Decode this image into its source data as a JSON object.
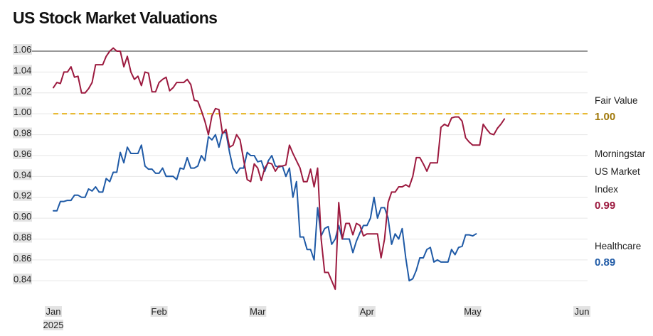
{
  "title": "US Stock Market Valuations",
  "colors": {
    "morningstar": "#9c1a3f",
    "healthcare": "#1f5aa6",
    "fair_value": "#e6b422",
    "fair_value_text": "#a0780a",
    "tick_highlight": "#e3e3e3",
    "grid": "#e6e6e6",
    "top_line": "#333333"
  },
  "labels": {
    "fair_value": {
      "name": "Fair Value",
      "value": "1.00"
    },
    "morningstar": {
      "name_lines": [
        "Morningstar",
        "US Market",
        "Index"
      ],
      "value": "0.99"
    },
    "healthcare": {
      "name": "Healthcare",
      "value": "0.89"
    }
  },
  "chart_data": {
    "type": "line",
    "title": "US Stock Market Valuations",
    "xlabel": "",
    "ylabel": "",
    "ylim": [
      0.83,
      1.06
    ],
    "xlim": [
      "2025-01-02",
      "2025-06-02"
    ],
    "yticks": [
      "1.06",
      "1.04",
      "1.02",
      "1.00",
      "0.98",
      "0.96",
      "0.94",
      "0.92",
      "0.90",
      "0.88",
      "0.86",
      "0.84"
    ],
    "xticks": [
      {
        "date": "2025-01-02",
        "label": "Jan",
        "sublabel": "2025"
      },
      {
        "date": "2025-02-01",
        "label": "Feb"
      },
      {
        "date": "2025-03-01",
        "label": "Mar"
      },
      {
        "date": "2025-04-01",
        "label": "Apr"
      },
      {
        "date": "2025-05-01",
        "label": "May"
      },
      {
        "date": "2025-06-01",
        "label": "Jun"
      }
    ],
    "grid": true,
    "reference_line": {
      "name": "Fair Value",
      "y": 1.0
    },
    "series": [
      {
        "name": "Morningstar US Market Index",
        "points": [
          [
            "2025-01-02",
            1.025
          ],
          [
            "2025-01-03",
            1.03
          ],
          [
            "2025-01-04",
            1.029
          ],
          [
            "2025-01-05",
            1.04
          ],
          [
            "2025-01-06",
            1.04
          ],
          [
            "2025-01-07",
            1.045
          ],
          [
            "2025-01-08",
            1.035
          ],
          [
            "2025-01-09",
            1.036
          ],
          [
            "2025-01-10",
            1.02
          ],
          [
            "2025-01-11",
            1.02
          ],
          [
            "2025-01-12",
            1.024
          ],
          [
            "2025-01-13",
            1.03
          ],
          [
            "2025-01-14",
            1.047
          ],
          [
            "2025-01-15",
            1.047
          ],
          [
            "2025-01-16",
            1.047
          ],
          [
            "2025-01-17",
            1.055
          ],
          [
            "2025-01-18",
            1.06
          ],
          [
            "2025-01-19",
            1.063
          ],
          [
            "2025-01-20",
            1.06
          ],
          [
            "2025-01-21",
            1.06
          ],
          [
            "2025-01-22",
            1.045
          ],
          [
            "2025-01-23",
            1.055
          ],
          [
            "2025-01-24",
            1.04
          ],
          [
            "2025-01-25",
            1.033
          ],
          [
            "2025-01-26",
            1.036
          ],
          [
            "2025-01-27",
            1.027
          ],
          [
            "2025-01-28",
            1.04
          ],
          [
            "2025-01-29",
            1.039
          ],
          [
            "2025-01-30",
            1.021
          ],
          [
            "2025-01-31",
            1.021
          ],
          [
            "2025-02-01",
            1.03
          ],
          [
            "2025-02-02",
            1.033
          ],
          [
            "2025-02-03",
            1.035
          ],
          [
            "2025-02-04",
            1.022
          ],
          [
            "2025-02-05",
            1.025
          ],
          [
            "2025-02-06",
            1.03
          ],
          [
            "2025-02-07",
            1.03
          ],
          [
            "2025-02-08",
            1.03
          ],
          [
            "2025-02-09",
            1.033
          ],
          [
            "2025-02-10",
            1.028
          ],
          [
            "2025-02-11",
            1.013
          ],
          [
            "2025-02-12",
            1.012
          ],
          [
            "2025-02-13",
            1.003
          ],
          [
            "2025-02-14",
            0.993
          ],
          [
            "2025-02-15",
            0.98
          ],
          [
            "2025-02-16",
            0.998
          ],
          [
            "2025-02-17",
            1.005
          ],
          [
            "2025-02-18",
            1.004
          ],
          [
            "2025-02-19",
            0.981
          ],
          [
            "2025-02-20",
            0.985
          ],
          [
            "2025-02-21",
            0.968
          ],
          [
            "2025-02-22",
            0.97
          ],
          [
            "2025-02-23",
            0.98
          ],
          [
            "2025-02-24",
            0.975
          ],
          [
            "2025-02-25",
            0.956
          ],
          [
            "2025-02-26",
            0.937
          ],
          [
            "2025-02-27",
            0.935
          ],
          [
            "2025-02-28",
            0.952
          ],
          [
            "2025-03-01",
            0.948
          ],
          [
            "2025-03-02",
            0.936
          ],
          [
            "2025-03-03",
            0.948
          ],
          [
            "2025-03-04",
            0.953
          ],
          [
            "2025-03-05",
            0.952
          ],
          [
            "2025-03-06",
            0.945
          ],
          [
            "2025-03-07",
            0.95
          ],
          [
            "2025-03-08",
            0.95
          ],
          [
            "2025-03-09",
            0.951
          ],
          [
            "2025-03-10",
            0.97
          ],
          [
            "2025-03-11",
            0.962
          ],
          [
            "2025-03-12",
            0.955
          ],
          [
            "2025-03-13",
            0.948
          ],
          [
            "2025-03-14",
            0.935
          ],
          [
            "2025-03-15",
            0.935
          ],
          [
            "2025-03-16",
            0.947
          ],
          [
            "2025-03-17",
            0.93
          ],
          [
            "2025-03-18",
            0.948
          ],
          [
            "2025-03-19",
            0.88
          ],
          [
            "2025-03-20",
            0.848
          ],
          [
            "2025-03-21",
            0.848
          ],
          [
            "2025-03-22",
            0.84
          ],
          [
            "2025-03-23",
            0.832
          ],
          [
            "2025-03-24",
            0.915
          ],
          [
            "2025-03-25",
            0.88
          ],
          [
            "2025-03-26",
            0.895
          ],
          [
            "2025-03-27",
            0.895
          ],
          [
            "2025-03-28",
            0.884
          ],
          [
            "2025-03-29",
            0.895
          ],
          [
            "2025-03-30",
            0.893
          ],
          [
            "2025-03-31",
            0.883
          ],
          [
            "2025-04-01",
            0.885
          ],
          [
            "2025-04-02",
            0.885
          ],
          [
            "2025-04-03",
            0.885
          ],
          [
            "2025-04-04",
            0.885
          ],
          [
            "2025-04-05",
            0.862
          ],
          [
            "2025-04-06",
            0.88
          ],
          [
            "2025-04-07",
            0.915
          ],
          [
            "2025-04-08",
            0.925
          ],
          [
            "2025-04-09",
            0.925
          ],
          [
            "2025-04-10",
            0.93
          ],
          [
            "2025-04-11",
            0.93
          ],
          [
            "2025-04-12",
            0.932
          ],
          [
            "2025-04-13",
            0.93
          ],
          [
            "2025-04-14",
            0.94
          ],
          [
            "2025-04-15",
            0.958
          ],
          [
            "2025-04-16",
            0.958
          ],
          [
            "2025-04-17",
            0.952
          ],
          [
            "2025-04-18",
            0.945
          ],
          [
            "2025-04-19",
            0.953
          ],
          [
            "2025-04-20",
            0.953
          ],
          [
            "2025-04-21",
            0.953
          ],
          [
            "2025-04-22",
            0.987
          ],
          [
            "2025-04-23",
            0.99
          ],
          [
            "2025-04-24",
            0.988
          ],
          [
            "2025-04-25",
            0.996
          ],
          [
            "2025-04-26",
            0.997
          ],
          [
            "2025-04-27",
            0.997
          ],
          [
            "2025-04-28",
            0.993
          ],
          [
            "2025-04-29",
            0.977
          ],
          [
            "2025-04-30",
            0.973
          ],
          [
            "2025-05-01",
            0.97
          ],
          [
            "2025-05-02",
            0.97
          ],
          [
            "2025-05-03",
            0.97
          ],
          [
            "2025-05-04",
            0.99
          ],
          [
            "2025-05-05",
            0.985
          ],
          [
            "2025-05-06",
            0.981
          ],
          [
            "2025-05-07",
            0.98
          ],
          [
            "2025-05-08",
            0.986
          ],
          [
            "2025-05-09",
            0.99
          ],
          [
            "2025-05-10",
            0.995
          ]
        ]
      },
      {
        "name": "Healthcare",
        "points": [
          [
            "2025-01-02",
            0.907
          ],
          [
            "2025-01-03",
            0.907
          ],
          [
            "2025-01-04",
            0.916
          ],
          [
            "2025-01-05",
            0.916
          ],
          [
            "2025-01-06",
            0.917
          ],
          [
            "2025-01-07",
            0.917
          ],
          [
            "2025-01-08",
            0.922
          ],
          [
            "2025-01-09",
            0.922
          ],
          [
            "2025-01-10",
            0.92
          ],
          [
            "2025-01-11",
            0.92
          ],
          [
            "2025-01-12",
            0.928
          ],
          [
            "2025-01-13",
            0.926
          ],
          [
            "2025-01-14",
            0.93
          ],
          [
            "2025-01-15",
            0.925
          ],
          [
            "2025-01-16",
            0.925
          ],
          [
            "2025-01-17",
            0.938
          ],
          [
            "2025-01-18",
            0.935
          ],
          [
            "2025-01-19",
            0.944
          ],
          [
            "2025-01-20",
            0.944
          ],
          [
            "2025-01-21",
            0.963
          ],
          [
            "2025-01-22",
            0.953
          ],
          [
            "2025-01-23",
            0.968
          ],
          [
            "2025-01-24",
            0.962
          ],
          [
            "2025-01-25",
            0.962
          ],
          [
            "2025-01-26",
            0.962
          ],
          [
            "2025-01-27",
            0.97
          ],
          [
            "2025-01-28",
            0.95
          ],
          [
            "2025-01-29",
            0.947
          ],
          [
            "2025-01-30",
            0.947
          ],
          [
            "2025-01-31",
            0.943
          ],
          [
            "2025-02-01",
            0.943
          ],
          [
            "2025-02-02",
            0.948
          ],
          [
            "2025-02-03",
            0.94
          ],
          [
            "2025-02-04",
            0.94
          ],
          [
            "2025-02-05",
            0.94
          ],
          [
            "2025-02-06",
            0.937
          ],
          [
            "2025-02-07",
            0.948
          ],
          [
            "2025-02-08",
            0.947
          ],
          [
            "2025-02-09",
            0.958
          ],
          [
            "2025-02-10",
            0.948
          ],
          [
            "2025-02-11",
            0.948
          ],
          [
            "2025-02-12",
            0.95
          ],
          [
            "2025-02-13",
            0.96
          ],
          [
            "2025-02-14",
            0.955
          ],
          [
            "2025-02-15",
            0.978
          ],
          [
            "2025-02-16",
            0.975
          ],
          [
            "2025-02-17",
            0.98
          ],
          [
            "2025-02-18",
            0.968
          ],
          [
            "2025-02-19",
            0.982
          ],
          [
            "2025-02-20",
            0.982
          ],
          [
            "2025-02-21",
            0.963
          ],
          [
            "2025-02-22",
            0.948
          ],
          [
            "2025-02-23",
            0.943
          ],
          [
            "2025-02-24",
            0.948
          ],
          [
            "2025-02-25",
            0.948
          ],
          [
            "2025-02-26",
            0.963
          ],
          [
            "2025-02-27",
            0.96
          ],
          [
            "2025-02-28",
            0.96
          ],
          [
            "2025-03-01",
            0.954
          ],
          [
            "2025-03-02",
            0.955
          ],
          [
            "2025-03-03",
            0.945
          ],
          [
            "2025-03-04",
            0.955
          ],
          [
            "2025-03-05",
            0.96
          ],
          [
            "2025-03-06",
            0.95
          ],
          [
            "2025-03-07",
            0.949
          ],
          [
            "2025-03-08",
            0.95
          ],
          [
            "2025-03-09",
            0.94
          ],
          [
            "2025-03-10",
            0.948
          ],
          [
            "2025-03-11",
            0.92
          ],
          [
            "2025-03-12",
            0.935
          ],
          [
            "2025-03-13",
            0.882
          ],
          [
            "2025-03-14",
            0.882
          ],
          [
            "2025-03-15",
            0.87
          ],
          [
            "2025-03-16",
            0.87
          ],
          [
            "2025-03-17",
            0.86
          ],
          [
            "2025-03-18",
            0.91
          ],
          [
            "2025-03-19",
            0.883
          ],
          [
            "2025-03-20",
            0.89
          ],
          [
            "2025-03-21",
            0.892
          ],
          [
            "2025-03-22",
            0.875
          ],
          [
            "2025-03-23",
            0.88
          ],
          [
            "2025-03-24",
            0.893
          ],
          [
            "2025-03-25",
            0.88
          ],
          [
            "2025-03-26",
            0.88
          ],
          [
            "2025-03-27",
            0.88
          ],
          [
            "2025-03-28",
            0.867
          ],
          [
            "2025-03-29",
            0.878
          ],
          [
            "2025-03-30",
            0.886
          ],
          [
            "2025-03-31",
            0.893
          ],
          [
            "2025-04-01",
            0.893
          ],
          [
            "2025-04-02",
            0.9
          ],
          [
            "2025-04-03",
            0.92
          ],
          [
            "2025-04-04",
            0.9
          ],
          [
            "2025-04-05",
            0.91
          ],
          [
            "2025-04-06",
            0.91
          ],
          [
            "2025-04-07",
            0.9
          ],
          [
            "2025-04-08",
            0.875
          ],
          [
            "2025-04-09",
            0.885
          ],
          [
            "2025-04-10",
            0.88
          ],
          [
            "2025-04-11",
            0.89
          ],
          [
            "2025-04-12",
            0.862
          ],
          [
            "2025-04-13",
            0.84
          ],
          [
            "2025-04-14",
            0.842
          ],
          [
            "2025-04-15",
            0.85
          ],
          [
            "2025-04-16",
            0.862
          ],
          [
            "2025-04-17",
            0.862
          ],
          [
            "2025-04-18",
            0.87
          ],
          [
            "2025-04-19",
            0.872
          ],
          [
            "2025-04-20",
            0.858
          ],
          [
            "2025-04-21",
            0.86
          ],
          [
            "2025-04-22",
            0.858
          ],
          [
            "2025-04-23",
            0.858
          ],
          [
            "2025-04-24",
            0.858
          ],
          [
            "2025-04-25",
            0.87
          ],
          [
            "2025-04-26",
            0.865
          ],
          [
            "2025-04-27",
            0.872
          ],
          [
            "2025-04-28",
            0.873
          ],
          [
            "2025-04-29",
            0.884
          ],
          [
            "2025-04-30",
            0.884
          ],
          [
            "2025-05-01",
            0.883
          ],
          [
            "2025-05-02",
            0.885
          ]
        ]
      }
    ]
  }
}
